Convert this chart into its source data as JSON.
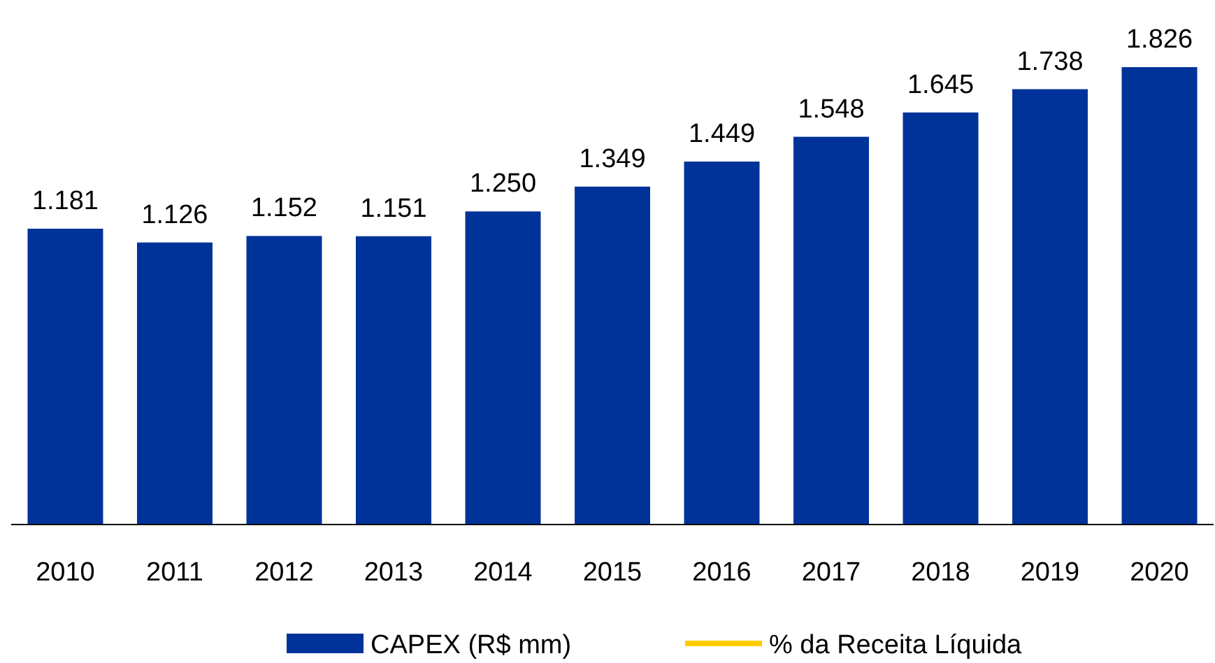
{
  "chart_data": {
    "type": "bar",
    "categories": [
      "2010",
      "2011",
      "2012",
      "2013",
      "2014",
      "2015",
      "2016",
      "2017",
      "2018",
      "2019",
      "2020"
    ],
    "series": [
      {
        "name": "CAPEX (R$ mm)",
        "color": "#003399",
        "values": [
          1181,
          1126,
          1152,
          1151,
          1250,
          1349,
          1449,
          1548,
          1645,
          1738,
          1826
        ],
        "value_labels": [
          "1.181",
          "1.126",
          "1.152",
          "1.151",
          "1.250",
          "1.349",
          "1.449",
          "1.548",
          "1.645",
          "1.738",
          "1.826"
        ]
      },
      {
        "name": "% da Receita Líquida",
        "type": "line",
        "color": "#ffcc00",
        "values": [
          null,
          null,
          null,
          null,
          null,
          null,
          null,
          null,
          null,
          null,
          null
        ]
      }
    ],
    "legend": "bottom"
  }
}
